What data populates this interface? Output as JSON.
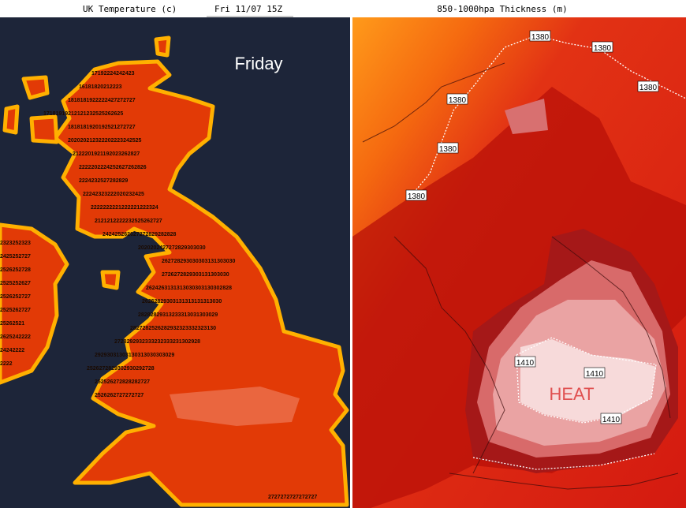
{
  "left_panel": {
    "title": "UK Temperature (c)",
    "timestamp": "Fri 11/07 15Z",
    "day_label": "Friday",
    "temperature_rows": [
      "17192224242423",
      "16181820212223",
      "1818181922222427272727",
      "17181919212121232525262625",
      "1818181920192521272727",
      "202020212322202223242525",
      "2122201921192023262827",
      "2222202224252627262826",
      "2224232527282829",
      "22242323222020232425",
      "2222222221222221222324",
      "2121212222232525262727",
      "242425262627272829282828",
      "2020202427272829303030",
      "262728293030303131303030",
      "2726272829303131303030",
      "2624263131313030303130302828",
      "26262829303131313131313030",
      "28282829313233313031303029",
      "2827282526282932323332323130",
      "2728292932333232333231302928",
      "29293031303130313030303029",
      "2526272829302930292728",
      "252526272828282727",
      "2526262727272727",
      "2727272727272727"
    ],
    "ireland_rows": [
      "2323252323",
      "2425252727",
      "2526252728",
      "2525252627",
      "2526252727",
      "2525262727",
      "25262521",
      "2625242222",
      "24242222",
      "2222"
    ]
  },
  "right_panel": {
    "title": "850-1000hpa Thickness (m)",
    "contour_labels": [
      "1380",
      "1380",
      "1380",
      "1380",
      "1380",
      "1380",
      "1410",
      "1410",
      "1410"
    ],
    "annotation": "HEAT"
  }
}
